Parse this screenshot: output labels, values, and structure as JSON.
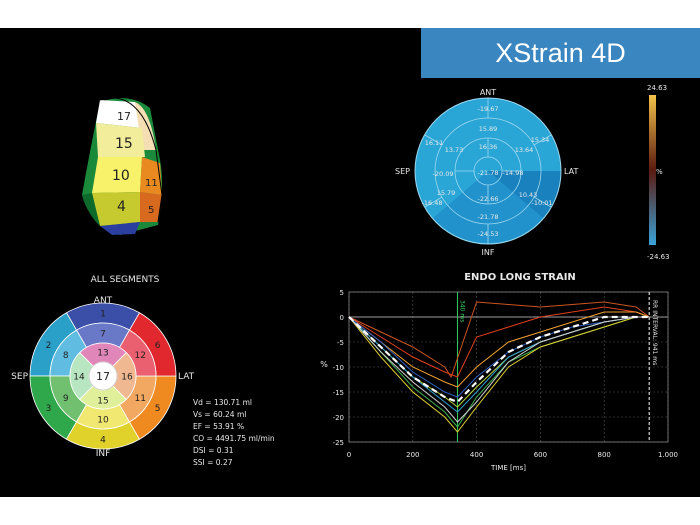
{
  "brand": {
    "title": "XStrain 4D"
  },
  "heart_model": {
    "segments": [
      "17",
      "15",
      "10",
      "11",
      "4",
      "5"
    ]
  },
  "bullseye_strain": {
    "labels": {
      "ant": "ANT",
      "sep": "SEP",
      "lat": "LAT",
      "inf": "INF"
    },
    "values": [
      "-19.67",
      "15.89",
      "15.34",
      "13.73",
      "16.11",
      "16.36",
      "13.64",
      "-20.09",
      "-21.78",
      "-14.98",
      "15.79",
      "-22.66",
      "10.43",
      "-16.48",
      "-10.01",
      "-21.78",
      "-24.53"
    ]
  },
  "colorbar": {
    "max": "24.63",
    "unit": "%",
    "min": "-24.63",
    "colors": {
      "top": "#f3c349",
      "mid": "#5a1a10",
      "bottom": "#3aa3d8"
    }
  },
  "all_segments": {
    "title": "ALL SEGMENTS",
    "labels": {
      "ant": "ANT",
      "sep": "SEP",
      "lat": "LAT",
      "inf": "INF"
    },
    "segment_numbers": [
      "1",
      "2",
      "3",
      "4",
      "5",
      "6",
      "7",
      "8",
      "9",
      "10",
      "11",
      "12",
      "13",
      "14",
      "15",
      "16",
      "17"
    ]
  },
  "metrics": [
    "Vd = 130.71 ml",
    "Vs = 60.24 ml",
    "EF = 53.91 %",
    "CO = 4491.75 ml/min",
    "DSI = 0.31",
    "SSI = 0.27"
  ],
  "chart_data": {
    "type": "line",
    "title": "ENDO LONG STRAIN",
    "xlabel": "TIME [ms]",
    "ylabel": "%",
    "xlim": [
      0,
      1000
    ],
    "ylim": [
      -25,
      5
    ],
    "xticks": [
      "0",
      "200",
      "400",
      "600",
      "800",
      "1.000"
    ],
    "yticks": [
      "5",
      "0",
      "-5",
      "-10",
      "-15",
      "-20",
      "-25"
    ],
    "grid": true,
    "annotations": [
      {
        "label": "340 ms",
        "x": 340
      },
      {
        "label": "RR INTERVAL: 941 ms",
        "x": 941
      }
    ],
    "series": [
      {
        "color": "#cc5522",
        "x": [
          0,
          100,
          200,
          300,
          320,
          400,
          500,
          600,
          700,
          800,
          900,
          941
        ],
        "y": [
          0,
          -3,
          -6,
          -10,
          -12,
          3,
          2.5,
          2,
          2.5,
          3,
          2,
          0
        ]
      },
      {
        "color": "#e04020",
        "x": [
          0,
          100,
          200,
          300,
          340,
          400,
          500,
          600,
          700,
          800,
          900,
          941
        ],
        "y": [
          0,
          -4,
          -8,
          -11,
          -12,
          -4,
          -2,
          0,
          1,
          2,
          1,
          0
        ]
      },
      {
        "color": "#f0a030",
        "x": [
          0,
          100,
          200,
          300,
          340,
          400,
          500,
          600,
          700,
          800,
          900,
          941
        ],
        "y": [
          0,
          -5,
          -10,
          -13,
          -14,
          -10,
          -5,
          -3,
          -1,
          1,
          1,
          0
        ]
      },
      {
        "color": "#b8d840",
        "x": [
          0,
          100,
          200,
          300,
          340,
          400,
          500,
          600,
          700,
          800,
          900,
          941
        ],
        "y": [
          0,
          -6,
          -12,
          -16,
          -18,
          -14,
          -8,
          -5,
          -3,
          -1,
          0,
          0
        ]
      },
      {
        "color": "#40b050",
        "x": [
          0,
          100,
          200,
          300,
          340,
          400,
          500,
          600,
          700,
          800,
          900,
          941
        ],
        "y": [
          0,
          -7,
          -14,
          -19,
          -22,
          -16,
          -9,
          -6,
          -4,
          -2,
          0,
          0
        ]
      },
      {
        "color": "#e0d030",
        "x": [
          0,
          100,
          200,
          300,
          340,
          400,
          500,
          600,
          700,
          800,
          900,
          941
        ],
        "y": [
          0,
          -8,
          -15,
          -20,
          -23,
          -18,
          -10,
          -6,
          -4,
          -2,
          0,
          0
        ]
      },
      {
        "color": "#30a0d0",
        "x": [
          0,
          100,
          200,
          300,
          340,
          400,
          500,
          600,
          700,
          800,
          900,
          941
        ],
        "y": [
          0,
          -6,
          -12,
          -17,
          -19,
          -15,
          -8,
          -5,
          -3,
          -1,
          0,
          0
        ]
      },
      {
        "color": "#3060c0",
        "x": [
          0,
          100,
          200,
          300,
          340,
          400,
          500,
          600,
          700,
          800,
          900,
          941
        ],
        "y": [
          0,
          -5,
          -11,
          -15,
          -16,
          -12,
          -7,
          -4,
          -2,
          -1,
          0,
          0
        ]
      },
      {
        "color": "#d0d0d0",
        "x": [
          0,
          100,
          200,
          300,
          340,
          400,
          500,
          600,
          700,
          800,
          900,
          941
        ],
        "y": [
          0,
          -7,
          -13,
          -18,
          -21,
          -17,
          -9,
          -5,
          -3,
          -1,
          0,
          0
        ]
      },
      {
        "color": "#ffffff",
        "dashed": true,
        "x": [
          0,
          100,
          200,
          300,
          340,
          400,
          500,
          600,
          700,
          800,
          900,
          941
        ],
        "y": [
          0,
          -6,
          -12,
          -16,
          -17,
          -13,
          -7,
          -4,
          -2,
          0,
          0,
          0
        ]
      }
    ]
  }
}
